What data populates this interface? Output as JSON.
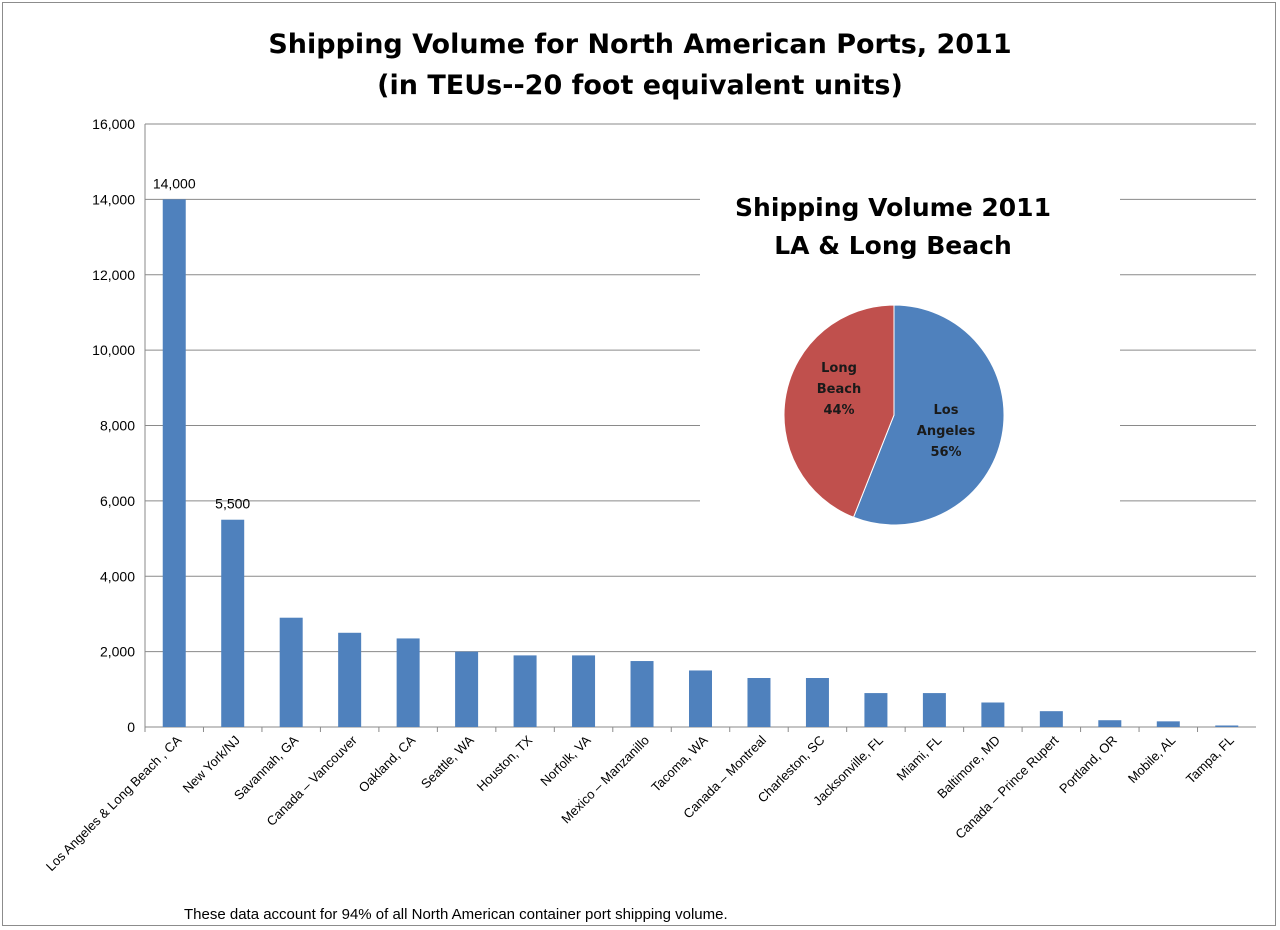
{
  "chart_data": [
    {
      "type": "bar",
      "title": "Shipping Volume for North American Ports, 2011",
      "subtitle": "(in TEUs--20 foot equivalent units)",
      "xlabel": "",
      "ylabel": "",
      "ylim": [
        0,
        16000
      ],
      "yticks": [
        0,
        2000,
        4000,
        6000,
        8000,
        10000,
        12000,
        14000,
        16000
      ],
      "ytick_labels": [
        "0",
        "2,000",
        "4,000",
        "6,000",
        "8,000",
        "10,000",
        "12,000",
        "14,000",
        "16,000"
      ],
      "grid": true,
      "legend": "none",
      "bar_color": "#4f81bd",
      "categories": [
        "Los Angeles & Long Beach , CA",
        "New York/NJ",
        "Savannah, GA",
        "Canada – Vancouver",
        "Oakland, CA",
        "Seattle, WA",
        "Houston, TX",
        "Norfolk, VA",
        "Mexico – Manzanillo",
        "Tacoma, WA",
        "Canada – Montreal",
        "Charleston, SC",
        "Jacksonville, FL",
        "Miami, FL",
        "Baltimore, MD",
        "Canada – Prince Rupert",
        "Portland, OR",
        "Mobile, AL",
        "Tampa, FL"
      ],
      "values": [
        14000,
        5500,
        2900,
        2500,
        2350,
        2000,
        1900,
        1900,
        1750,
        1500,
        1300,
        1300,
        900,
        900,
        650,
        420,
        180,
        150,
        40
      ],
      "data_labels": [
        {
          "index": 0,
          "text": "14,000"
        },
        {
          "index": 1,
          "text": "5,500"
        }
      ]
    },
    {
      "type": "pie",
      "title": "Shipping Volume 2011",
      "subtitle": "LA & Long Beach",
      "slices": [
        {
          "label_lines": [
            "Los",
            "Angeles",
            "56%"
          ],
          "value": 56,
          "color": "#4f81bd"
        },
        {
          "label_lines": [
            "Long",
            "Beach",
            "44%"
          ],
          "value": 44,
          "color": "#c0504d"
        }
      ]
    }
  ],
  "footnote": "These data account for 94% of all North American container port shipping volume."
}
